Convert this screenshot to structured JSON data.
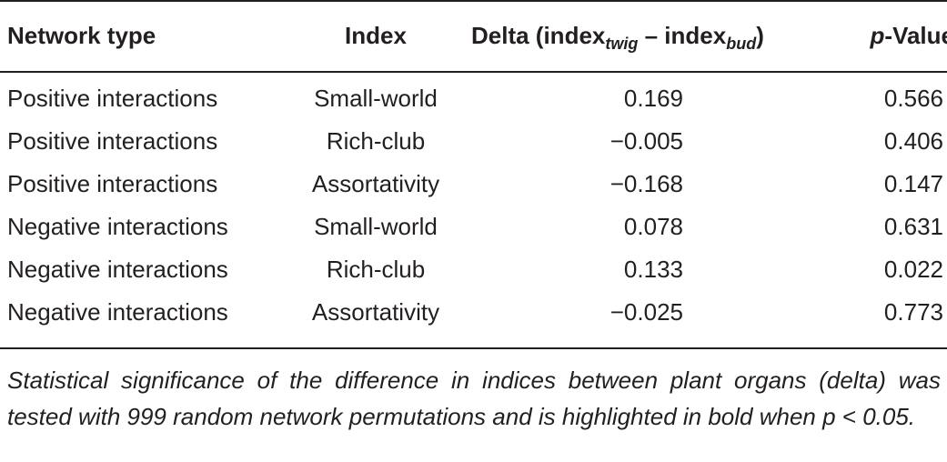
{
  "table": {
    "headers": {
      "network_type": "Network type",
      "index": "Index",
      "delta_prefix": "Delta (index",
      "delta_sub1": "twig",
      "delta_mid": " – index",
      "delta_sub2": "bud",
      "delta_suffix": ")",
      "pvalue_italic": "p",
      "pvalue_rest": "-Value"
    },
    "rows": [
      {
        "network_type": "Positive interactions",
        "index": "Small-world",
        "delta": "0.169",
        "p_value": "0.566",
        "significant": false
      },
      {
        "network_type": "Positive interactions",
        "index": "Rich-club",
        "delta": "−0.005",
        "p_value": "0.406",
        "significant": false
      },
      {
        "network_type": "Positive interactions",
        "index": "Assortativity",
        "delta": "−0.168",
        "p_value": "0.147",
        "significant": false
      },
      {
        "network_type": "Negative interactions",
        "index": "Small-world",
        "delta": "0.078",
        "p_value": "0.631",
        "significant": false
      },
      {
        "network_type": "Negative interactions",
        "index": "Rich-club",
        "delta": "0.133",
        "p_value": "0.022",
        "significant": true
      },
      {
        "network_type": "Negative interactions",
        "index": "Assortativity",
        "delta": "−0.025",
        "p_value": "0.773",
        "significant": false
      }
    ]
  },
  "footnote": "Statistical significance of the difference in indices between plant organs (delta) was tested with 999 random network permutations and is highlighted in bold when p < 0.05.",
  "colors": {
    "text": "#231f20",
    "rule": "#231f20",
    "background": "#ffffff"
  }
}
